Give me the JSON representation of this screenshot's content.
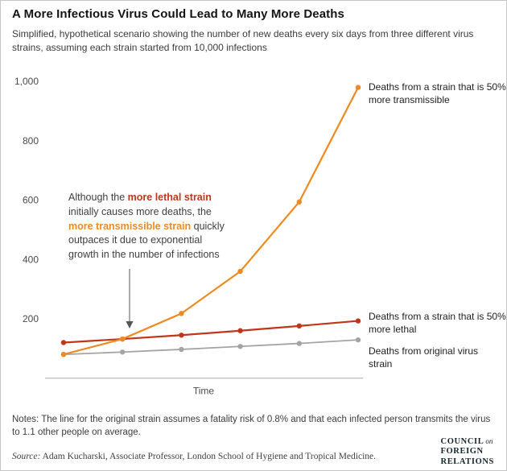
{
  "header": {
    "title": "A More Infectious Virus Could Lead to Many More Deaths",
    "subtitle": "Simplified, hypothetical scenario showing the number of new deaths every six days from three different virus strains, assuming each strain started from 10,000 infections"
  },
  "chart_data": {
    "type": "line",
    "x": [
      0,
      1,
      2,
      3,
      4,
      5
    ],
    "xlabel": "Time",
    "ylim": [
      0,
      1000
    ],
    "yticks": [
      200,
      400,
      600,
      800,
      1000
    ],
    "ytick_labels": [
      "200",
      "400",
      "600",
      "800",
      "1,000"
    ],
    "grid": false,
    "legend_position": "right-of-line-ends",
    "series": [
      {
        "name": "transmissible",
        "label": "Deaths from a strain that is 50% more transmissible",
        "color": "#EE8A22",
        "values": [
          80,
          132,
          218,
          360,
          594,
          980
        ]
      },
      {
        "name": "lethal",
        "label": "Deaths from a strain that is 50% more lethal",
        "color": "#C0361B",
        "values": [
          120,
          132,
          145,
          160,
          176,
          193
        ]
      },
      {
        "name": "original",
        "label": "Deaths from original virus strain",
        "color": "#A4A4A4",
        "values": [
          80,
          88,
          97,
          107,
          117,
          129
        ]
      }
    ]
  },
  "annotation": {
    "lines": [
      [
        {
          "t": "Although the ",
          "s": "n"
        },
        {
          "t": "more lethal strain",
          "s": "lethal"
        }
      ],
      [
        {
          "t": "initially causes more deaths, the",
          "s": "n"
        }
      ],
      [
        {
          "t": "more transmissible strain",
          "s": "transmissible"
        },
        {
          "t": " quickly",
          "s": "n"
        }
      ],
      [
        {
          "t": "outpaces it due to exponential",
          "s": "n"
        }
      ],
      [
        {
          "t": "growth in the number of infections",
          "s": "n"
        }
      ]
    ]
  },
  "notes": "Notes: The line for the original strain assumes a fatality risk of 0.8% and that each infected person transmits the virus to 1.1 other people on average.",
  "source": {
    "label": "Source:",
    "text": " Adam Kucharski, Associate Professor, London School of Hygiene and Tropical Medicine."
  },
  "logo": {
    "line1": "COUNCIL",
    "on": "on",
    "line2": "FOREIGN",
    "line3": "RELATIONS"
  }
}
